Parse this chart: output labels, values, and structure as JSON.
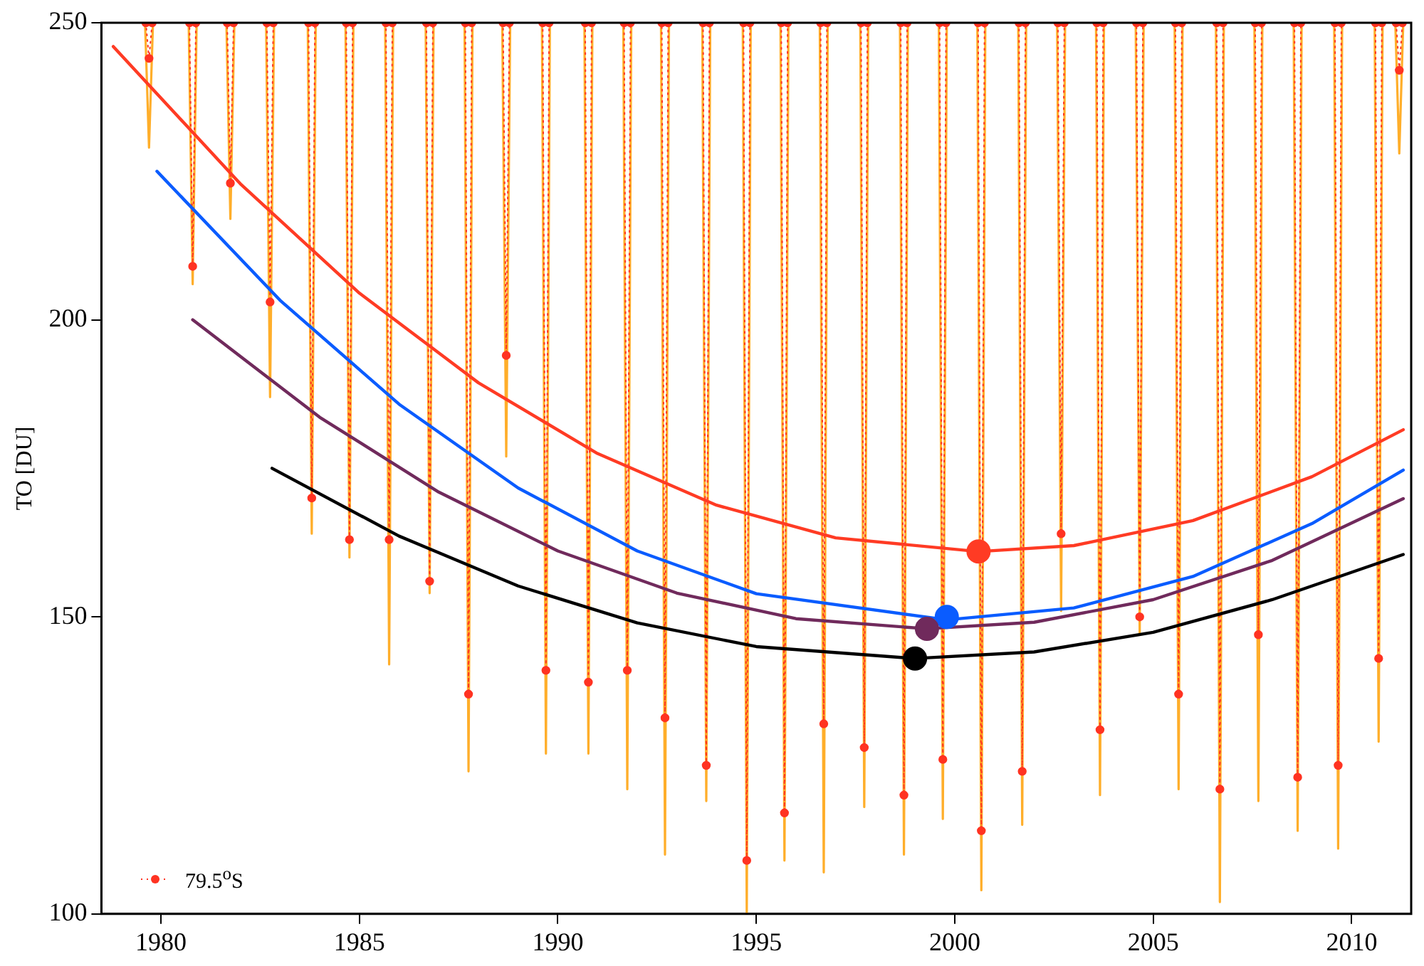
{
  "chart_data": {
    "type": "line",
    "ylabel": "TO [DU]",
    "xlim": [
      1978.5,
      2011.5
    ],
    "ylim": [
      100,
      250
    ],
    "xticks": [
      1980,
      1985,
      1990,
      1995,
      2000,
      2005,
      2010
    ],
    "yticks": [
      100,
      150,
      200,
      250
    ],
    "grid": false,
    "legend": "bottom left",
    "series": [
      {
        "color": "#ffae2a",
        "marker": "none",
        "line_style": "solid",
        "x": [
          1979.6,
          1979.7,
          1979.8,
          1980.2,
          1980.7,
          1980.8,
          1980.9,
          1981.3,
          1981.65,
          1981.75,
          1981.85,
          1982.2,
          1982.65,
          1982.75,
          1982.85,
          1983.3,
          1983.7,
          1983.8,
          1983.9,
          1984.3,
          1984.65,
          1984.75,
          1984.85,
          1985.3,
          1985.65,
          1985.75,
          1985.85,
          1986.3,
          1986.67,
          1986.77,
          1986.87,
          1987.3,
          1987.65,
          1987.75,
          1987.85,
          1988.2,
          1988.6,
          1988.7,
          1988.8,
          1989.2,
          1989.6,
          1989.7,
          1989.8,
          1990.2,
          1990.67,
          1990.77,
          1990.87,
          1991.3,
          1991.65,
          1991.75,
          1991.85,
          1992.2,
          1992.6,
          1992.7,
          1992.8,
          1993.2,
          1993.64,
          1993.74,
          1993.84,
          1994.3,
          1994.66,
          1994.76,
          1994.86,
          1995.2,
          1995.61,
          1995.71,
          1995.81,
          1996.2,
          1996.6,
          1996.7,
          1996.8,
          1997.2,
          1997.62,
          1997.72,
          1997.82,
          1998.2,
          1998.62,
          1998.72,
          1998.82,
          1999.2,
          1999.6,
          1999.7,
          1999.8,
          2000.2,
          2000.57,
          2000.67,
          2000.77,
          2001.2,
          2001.6,
          2001.7,
          2001.8,
          2002.2,
          2002.58,
          2002.68,
          2002.78,
          2003.2,
          2003.56,
          2003.66,
          2003.76,
          2004.2,
          2004.56,
          2004.66,
          2004.76,
          2005.2,
          2005.54,
          2005.64,
          2005.74,
          2006.2,
          2006.58,
          2006.68,
          2006.78,
          2007.2,
          2007.55,
          2007.65,
          2007.75,
          2008.2,
          2008.54,
          2008.64,
          2008.74,
          2009.2,
          2009.56,
          2009.66,
          2009.76,
          2010.2,
          2010.58,
          2010.68,
          2010.78,
          2010.95,
          2011.1,
          2011.2,
          2011.3
        ],
        "values": [
          250,
          229,
          250,
          null,
          250,
          206,
          250,
          null,
          250,
          217,
          250,
          null,
          250,
          187,
          250,
          null,
          250,
          164,
          250,
          null,
          250,
          160,
          250,
          null,
          250,
          142,
          250,
          null,
          250,
          154,
          250,
          null,
          250,
          124,
          250,
          null,
          250,
          177,
          250,
          null,
          250,
          127,
          250,
          null,
          250,
          127,
          250,
          null,
          250,
          121,
          250,
          null,
          250,
          110,
          250,
          null,
          250,
          119,
          250,
          null,
          250,
          100,
          250,
          null,
          250,
          109,
          250,
          null,
          250,
          107,
          250,
          null,
          250,
          118,
          250,
          null,
          250,
          110,
          250,
          null,
          250,
          116,
          250,
          null,
          250,
          104,
          250,
          null,
          250,
          115,
          250,
          null,
          250,
          151,
          250,
          null,
          250,
          120,
          250,
          null,
          250,
          147,
          250,
          null,
          250,
          121,
          250,
          null,
          250,
          102,
          250,
          null,
          250,
          119,
          250,
          null,
          250,
          114,
          250,
          null,
          250,
          111,
          250,
          null,
          250,
          129,
          250,
          null,
          250,
          228,
          250
        ]
      },
      {
        "name": "79.5$^{o}$S",
        "color": "#ff3322",
        "marker": "circle",
        "line_style": "dotted",
        "x": [
          1979.62,
          1979.7,
          1979.78,
          1980.72,
          1980.8,
          1980.88,
          1981.67,
          1981.75,
          1981.83,
          1982.67,
          1982.75,
          1982.83,
          1983.72,
          1983.8,
          1983.88,
          1984.67,
          1984.75,
          1984.83,
          1985.67,
          1985.75,
          1985.83,
          1986.69,
          1986.77,
          1986.85,
          1987.67,
          1987.75,
          1987.83,
          1988.62,
          1988.7,
          1988.78,
          1989.62,
          1989.7,
          1989.78,
          1990.69,
          1990.77,
          1990.85,
          1991.67,
          1991.75,
          1991.83,
          1992.62,
          1992.7,
          1992.78,
          1993.66,
          1993.74,
          1993.82,
          1994.68,
          1994.76,
          1994.84,
          1995.63,
          1995.71,
          1995.79,
          1996.62,
          1996.7,
          1996.78,
          1997.64,
          1997.72,
          1997.8,
          1998.64,
          1998.72,
          1998.8,
          1999.62,
          1999.7,
          1999.78,
          2000.59,
          2000.67,
          2000.75,
          2001.62,
          2001.7,
          2001.78,
          2002.6,
          2002.68,
          2002.76,
          2003.58,
          2003.66,
          2003.74,
          2004.58,
          2004.66,
          2004.74,
          2005.56,
          2005.64,
          2005.72,
          2006.6,
          2006.68,
          2006.76,
          2007.57,
          2007.65,
          2007.73,
          2008.56,
          2008.64,
          2008.72,
          2009.58,
          2009.66,
          2009.74,
          2010.6,
          2010.68,
          2010.76,
          2011.12,
          2011.2,
          2011.28
        ],
        "values": [
          250,
          244,
          250,
          250,
          209,
          250,
          250,
          223,
          250,
          250,
          203,
          250,
          250,
          170,
          250,
          250,
          163,
          250,
          250,
          163,
          250,
          250,
          156,
          250,
          250,
          137,
          250,
          250,
          194,
          250,
          250,
          141,
          250,
          250,
          139,
          250,
          250,
          141,
          250,
          250,
          133,
          250,
          250,
          125,
          250,
          250,
          109,
          250,
          250,
          117,
          250,
          250,
          132,
          250,
          250,
          128,
          250,
          250,
          120,
          250,
          250,
          126,
          250,
          250,
          114,
          250,
          250,
          124,
          250,
          250,
          164,
          250,
          250,
          131,
          250,
          250,
          150,
          250,
          250,
          137,
          250,
          250,
          121,
          250,
          250,
          147,
          250,
          250,
          123,
          250,
          250,
          125,
          250,
          250,
          143,
          250,
          250,
          242,
          250
        ]
      },
      {
        "color": "#ff3b24",
        "marker": "none",
        "line_style": "solid",
        "x": [
          1978.8,
          1982,
          1985,
          1988,
          1991,
          1994,
          1997,
          2000.6,
          2003,
          2006,
          2009,
          2011.3
        ],
        "values": [
          246,
          222.9,
          204.5,
          189.4,
          177.5,
          168.8,
          163.3,
          161,
          162,
          166.2,
          173.6,
          181.5
        ]
      },
      {
        "color": "#0a5cff",
        "marker": "none",
        "line_style": "solid",
        "x": [
          1979.9,
          1983,
          1986,
          1989,
          1992,
          1995,
          1999.8,
          2003,
          2006,
          2009,
          2011.3
        ],
        "values": [
          225,
          203.3,
          185.8,
          171.7,
          161.1,
          153.9,
          149.5,
          151.5,
          156.8,
          165.7,
          174.7
        ]
      },
      {
        "color": "#702a5c",
        "marker": "none",
        "line_style": "solid",
        "x": [
          1980.8,
          1984,
          1987,
          1990,
          1993,
          1996,
          1999.3,
          2002,
          2005,
          2008,
          2011.3
        ],
        "values": [
          200,
          183.6,
          171,
          161.1,
          154,
          149.7,
          148,
          149.1,
          152.9,
          159.5,
          169.9
        ]
      },
      {
        "color": "#000000",
        "marker": "none",
        "line_style": "solid",
        "x": [
          1982.8,
          1986,
          1989,
          1992,
          1995,
          1999,
          2002,
          2005,
          2008,
          2011.3
        ],
        "values": [
          175,
          163.6,
          155.2,
          149,
          145,
          143,
          144.1,
          147.4,
          152.9,
          160.5
        ]
      },
      {
        "type": "scatter",
        "color": "#ff3b24",
        "marker": "circle",
        "x": [
          2000.6
        ],
        "values": [
          161
        ]
      },
      {
        "type": "scatter",
        "color": "#0a5cff",
        "marker": "circle",
        "x": [
          1999.8
        ],
        "values": [
          150
        ]
      },
      {
        "type": "scatter",
        "color": "#702a5c",
        "marker": "circle",
        "x": [
          1999.3
        ],
        "values": [
          148
        ]
      },
      {
        "type": "scatter",
        "color": "#000000",
        "marker": "circle",
        "x": [
          1999
        ],
        "values": [
          143
        ]
      }
    ]
  }
}
